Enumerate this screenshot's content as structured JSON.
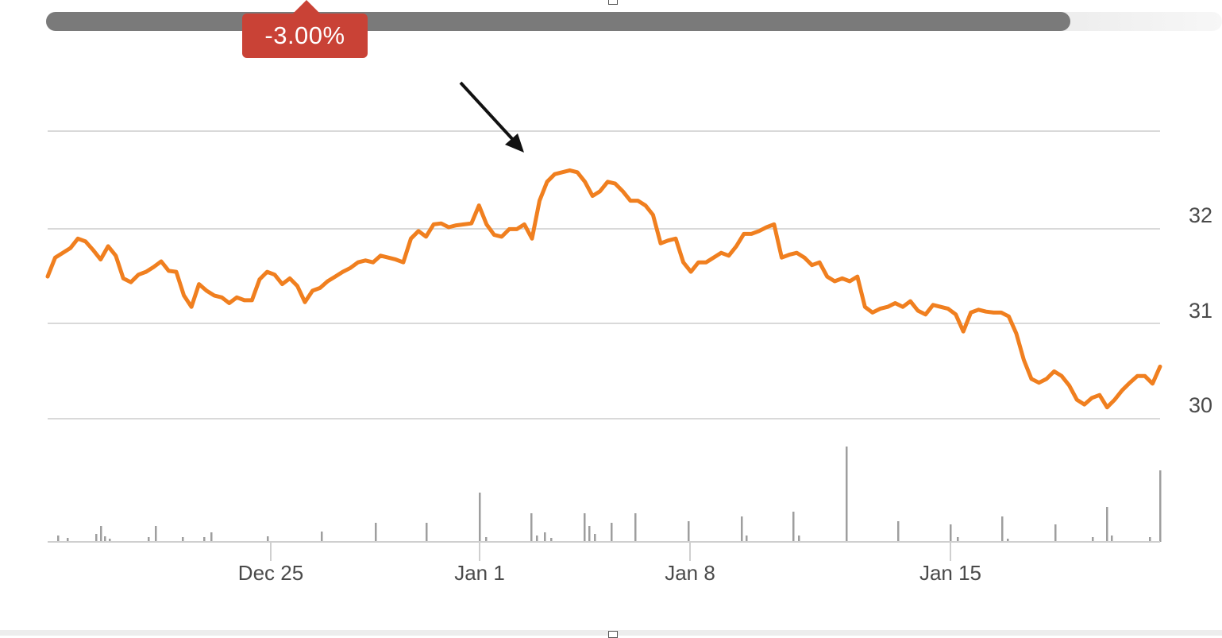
{
  "badge": {
    "text": "-3.00%",
    "color": "#c94236"
  },
  "chart_data": {
    "type": "line",
    "title": "",
    "xlabel": "",
    "ylabel": "",
    "x_tick_labels": [
      "Dec 25",
      "Jan 1",
      "Jan 8",
      "Jan 15"
    ],
    "y_tick_labels": [
      "30",
      "31",
      "32"
    ],
    "ylim": [
      30,
      33.1
    ],
    "grid": "horizontal",
    "line_color": "#f07f1f",
    "volume_color": "#9e9e9e",
    "series": [
      {
        "values": [
          31.5,
          31.7,
          31.75,
          31.8,
          31.9,
          31.87,
          31.78,
          31.68,
          31.82,
          31.72,
          31.48,
          31.44,
          31.52,
          31.55,
          31.6,
          31.66,
          31.56,
          31.55,
          31.3,
          31.18,
          31.42,
          31.35,
          31.3,
          31.28,
          31.22,
          31.28,
          31.25,
          31.25,
          31.47,
          31.55,
          31.52,
          31.42,
          31.48,
          31.4,
          31.23,
          31.35,
          31.38,
          31.45,
          31.5,
          31.55,
          31.59,
          31.65,
          31.67,
          31.65,
          31.72,
          31.7,
          31.68,
          31.65,
          31.9,
          31.98,
          31.92,
          32.05,
          32.06,
          32.02,
          32.04,
          32.05,
          32.06,
          32.25,
          32.05,
          31.94,
          31.92,
          32.0,
          32.0,
          32.05,
          31.9,
          32.3,
          32.5,
          32.58,
          32.6,
          32.62,
          32.6,
          32.5,
          32.35,
          32.4,
          32.5,
          32.48,
          32.4,
          32.3,
          32.3,
          32.25,
          32.15,
          31.85,
          31.88,
          31.9,
          31.65,
          31.55,
          31.65,
          31.65,
          31.7,
          31.75,
          31.72,
          31.82,
          31.95,
          31.95,
          31.98,
          32.02,
          32.05,
          31.7,
          31.73,
          31.75,
          31.7,
          31.62,
          31.65,
          31.5,
          31.45,
          31.48,
          31.45,
          31.5,
          31.18,
          31.12,
          31.16,
          31.18,
          31.22,
          31.18,
          31.24,
          31.14,
          31.1,
          31.2,
          31.18,
          31.16,
          31.1,
          30.92,
          31.12,
          31.15,
          31.13,
          31.12,
          31.12,
          31.08,
          30.9,
          30.62,
          30.42,
          30.38,
          30.42,
          30.5,
          30.45,
          30.35,
          30.2,
          30.15,
          30.22,
          30.25,
          30.12,
          30.2,
          30.3,
          30.38,
          30.45,
          30.45,
          30.37,
          30.55
        ]
      }
    ]
  }
}
